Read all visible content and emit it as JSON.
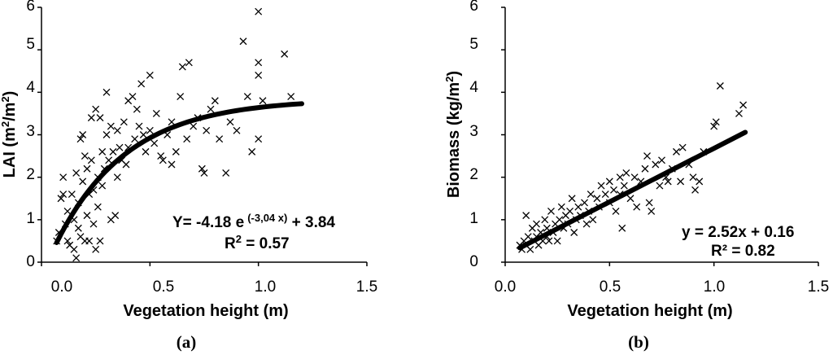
{
  "chart_data": [
    {
      "type": "scatter",
      "panel_label": "(a)",
      "xlabel": "Vegetation height (m)",
      "ylabel_main": "LAI (m",
      "ylabel_sup1": "2",
      "ylabel_mid": "/m",
      "ylabel_sup2": "2",
      "ylabel_end": ")",
      "xlim": [
        0,
        1.5
      ],
      "ylim": [
        0,
        6
      ],
      "xticks": [
        "0.0",
        "0.5",
        "1.0",
        "1.5"
      ],
      "yticks": [
        "0",
        "1",
        "2",
        "3",
        "4",
        "5",
        "6"
      ],
      "equation_prefix": "Y= -4.18 e",
      "equation_exp": "(-3,04  x)",
      "equation_suffix": " + 3.84",
      "r2_label": "R",
      "r2_sup": "2",
      "r2_value": "  = 0.57",
      "fit": {
        "model": "exponential",
        "a": -4.18,
        "b": -3.04,
        "c": 3.84,
        "x_range": [
          0.07,
          1.2
        ]
      },
      "points": [
        [
          0.07,
          0.5
        ],
        [
          0.08,
          0.7
        ],
        [
          0.09,
          1.5
        ],
        [
          0.1,
          1.6
        ],
        [
          0.1,
          2.0
        ],
        [
          0.11,
          0.9
        ],
        [
          0.12,
          1.2
        ],
        [
          0.12,
          0.5
        ],
        [
          0.13,
          0.4
        ],
        [
          0.14,
          1.6
        ],
        [
          0.15,
          0.3
        ],
        [
          0.15,
          1.0
        ],
        [
          0.16,
          0.1
        ],
        [
          0.16,
          2.1
        ],
        [
          0.17,
          0.8
        ],
        [
          0.17,
          1.4
        ],
        [
          0.18,
          2.9
        ],
        [
          0.18,
          0.6
        ],
        [
          0.19,
          3.0
        ],
        [
          0.19,
          1.9
        ],
        [
          0.2,
          2.5
        ],
        [
          0.2,
          0.5
        ],
        [
          0.21,
          1.1
        ],
        [
          0.21,
          2.2
        ],
        [
          0.22,
          1.6
        ],
        [
          0.22,
          0.5
        ],
        [
          0.23,
          2.4
        ],
        [
          0.23,
          3.4
        ],
        [
          0.24,
          1.7
        ],
        [
          0.24,
          0.9
        ],
        [
          0.25,
          3.6
        ],
        [
          0.25,
          0.3
        ],
        [
          0.26,
          2.0
        ],
        [
          0.26,
          1.3
        ],
        [
          0.27,
          3.4
        ],
        [
          0.27,
          0.5
        ],
        [
          0.28,
          2.6
        ],
        [
          0.28,
          1.8
        ],
        [
          0.29,
          2.2
        ],
        [
          0.3,
          3.0
        ],
        [
          0.3,
          4.0
        ],
        [
          0.31,
          2.4
        ],
        [
          0.32,
          3.2
        ],
        [
          0.32,
          1.0
        ],
        [
          0.33,
          2.6
        ],
        [
          0.34,
          1.1
        ],
        [
          0.35,
          3.1
        ],
        [
          0.35,
          2.0
        ],
        [
          0.36,
          2.7
        ],
        [
          0.37,
          2.4
        ],
        [
          0.38,
          3.3
        ],
        [
          0.39,
          2.3
        ],
        [
          0.4,
          3.8
        ],
        [
          0.4,
          2.7
        ],
        [
          0.42,
          3.9
        ],
        [
          0.43,
          2.9
        ],
        [
          0.44,
          3.6
        ],
        [
          0.45,
          3.2
        ],
        [
          0.46,
          4.2
        ],
        [
          0.47,
          3.0
        ],
        [
          0.48,
          2.6
        ],
        [
          0.5,
          4.4
        ],
        [
          0.5,
          3.1
        ],
        [
          0.52,
          2.8
        ],
        [
          0.53,
          3.5
        ],
        [
          0.55,
          2.5
        ],
        [
          0.56,
          2.4
        ],
        [
          0.58,
          3.0
        ],
        [
          0.6,
          3.3
        ],
        [
          0.6,
          2.3
        ],
        [
          0.62,
          2.6
        ],
        [
          0.64,
          3.9
        ],
        [
          0.65,
          4.6
        ],
        [
          0.67,
          2.9
        ],
        [
          0.68,
          4.7
        ],
        [
          0.7,
          3.2
        ],
        [
          0.72,
          3.4
        ],
        [
          0.74,
          2.2
        ],
        [
          0.75,
          2.1
        ],
        [
          0.76,
          3.1
        ],
        [
          0.78,
          3.6
        ],
        [
          0.8,
          3.8
        ],
        [
          0.82,
          2.9
        ],
        [
          0.85,
          2.1
        ],
        [
          0.87,
          3.3
        ],
        [
          0.9,
          3.1
        ],
        [
          0.93,
          5.2
        ],
        [
          0.95,
          3.9
        ],
        [
          0.97,
          2.6
        ],
        [
          1.0,
          5.9
        ],
        [
          1.0,
          4.7
        ],
        [
          1.0,
          4.4
        ],
        [
          1.0,
          2.9
        ],
        [
          1.02,
          3.8
        ],
        [
          1.12,
          4.9
        ],
        [
          1.15,
          3.9
        ]
      ]
    },
    {
      "type": "scatter",
      "panel_label": "(b)",
      "xlabel": "Vegetation height (m)",
      "ylabel_main": "Biomass (kg/m",
      "ylabel_sup1": "2",
      "ylabel_end": ")",
      "xlim": [
        0,
        1.5
      ],
      "ylim": [
        0,
        6
      ],
      "xticks": [
        "0.0",
        "0.5",
        "1.0",
        "1.5"
      ],
      "yticks": [
        "0",
        "1",
        "2",
        "3",
        "4",
        "5",
        "6"
      ],
      "equation": "y = 2.52x + 0.16",
      "r2_text": "R² = 0.82",
      "fit": {
        "model": "linear",
        "slope": 2.52,
        "intercept": 0.16,
        "x_range": [
          0.07,
          1.15
        ]
      },
      "points": [
        [
          0.07,
          0.4
        ],
        [
          0.08,
          0.3
        ],
        [
          0.09,
          0.5
        ],
        [
          0.1,
          1.1
        ],
        [
          0.1,
          0.4
        ],
        [
          0.11,
          0.6
        ],
        [
          0.12,
          0.3
        ],
        [
          0.13,
          0.8
        ],
        [
          0.14,
          0.5
        ],
        [
          0.15,
          0.6
        ],
        [
          0.15,
          0.9
        ],
        [
          0.16,
          0.4
        ],
        [
          0.17,
          0.7
        ],
        [
          0.18,
          0.5
        ],
        [
          0.19,
          1.0
        ],
        [
          0.2,
          0.6
        ],
        [
          0.2,
          0.8
        ],
        [
          0.21,
          0.5
        ],
        [
          0.22,
          1.2
        ],
        [
          0.23,
          0.7
        ],
        [
          0.24,
          0.9
        ],
        [
          0.25,
          0.5
        ],
        [
          0.26,
          1.0
        ],
        [
          0.27,
          1.3
        ],
        [
          0.28,
          0.8
        ],
        [
          0.29,
          1.1
        ],
        [
          0.3,
          0.9
        ],
        [
          0.31,
          1.2
        ],
        [
          0.32,
          1.5
        ],
        [
          0.33,
          0.7
        ],
        [
          0.34,
          1.0
        ],
        [
          0.35,
          1.3
        ],
        [
          0.36,
          1.1
        ],
        [
          0.38,
          1.4
        ],
        [
          0.39,
          0.9
        ],
        [
          0.4,
          1.2
        ],
        [
          0.41,
          1.6
        ],
        [
          0.42,
          1.0
        ],
        [
          0.44,
          1.5
        ],
        [
          0.45,
          1.3
        ],
        [
          0.46,
          1.8
        ],
        [
          0.48,
          1.6
        ],
        [
          0.5,
          1.4
        ],
        [
          0.5,
          1.9
        ],
        [
          0.52,
          1.7
        ],
        [
          0.53,
          1.2
        ],
        [
          0.55,
          2.0
        ],
        [
          0.55,
          1.6
        ],
        [
          0.56,
          0.8
        ],
        [
          0.57,
          1.8
        ],
        [
          0.58,
          2.1
        ],
        [
          0.6,
          1.5
        ],
        [
          0.62,
          2.0
        ],
        [
          0.63,
          1.3
        ],
        [
          0.65,
          1.9
        ],
        [
          0.67,
          2.2
        ],
        [
          0.68,
          2.5
        ],
        [
          0.69,
          1.4
        ],
        [
          0.7,
          1.2
        ],
        [
          0.72,
          2.3
        ],
        [
          0.74,
          1.8
        ],
        [
          0.75,
          2.4
        ],
        [
          0.77,
          2.0
        ],
        [
          0.78,
          1.9
        ],
        [
          0.8,
          2.2
        ],
        [
          0.82,
          2.6
        ],
        [
          0.84,
          1.9
        ],
        [
          0.85,
          2.7
        ],
        [
          0.88,
          2.3
        ],
        [
          0.9,
          2.0
        ],
        [
          0.91,
          1.7
        ],
        [
          0.93,
          1.9
        ],
        [
          0.95,
          2.6
        ],
        [
          1.0,
          3.2
        ],
        [
          1.01,
          3.3
        ],
        [
          1.03,
          4.15
        ],
        [
          1.12,
          3.5
        ],
        [
          1.14,
          3.7
        ]
      ]
    }
  ]
}
